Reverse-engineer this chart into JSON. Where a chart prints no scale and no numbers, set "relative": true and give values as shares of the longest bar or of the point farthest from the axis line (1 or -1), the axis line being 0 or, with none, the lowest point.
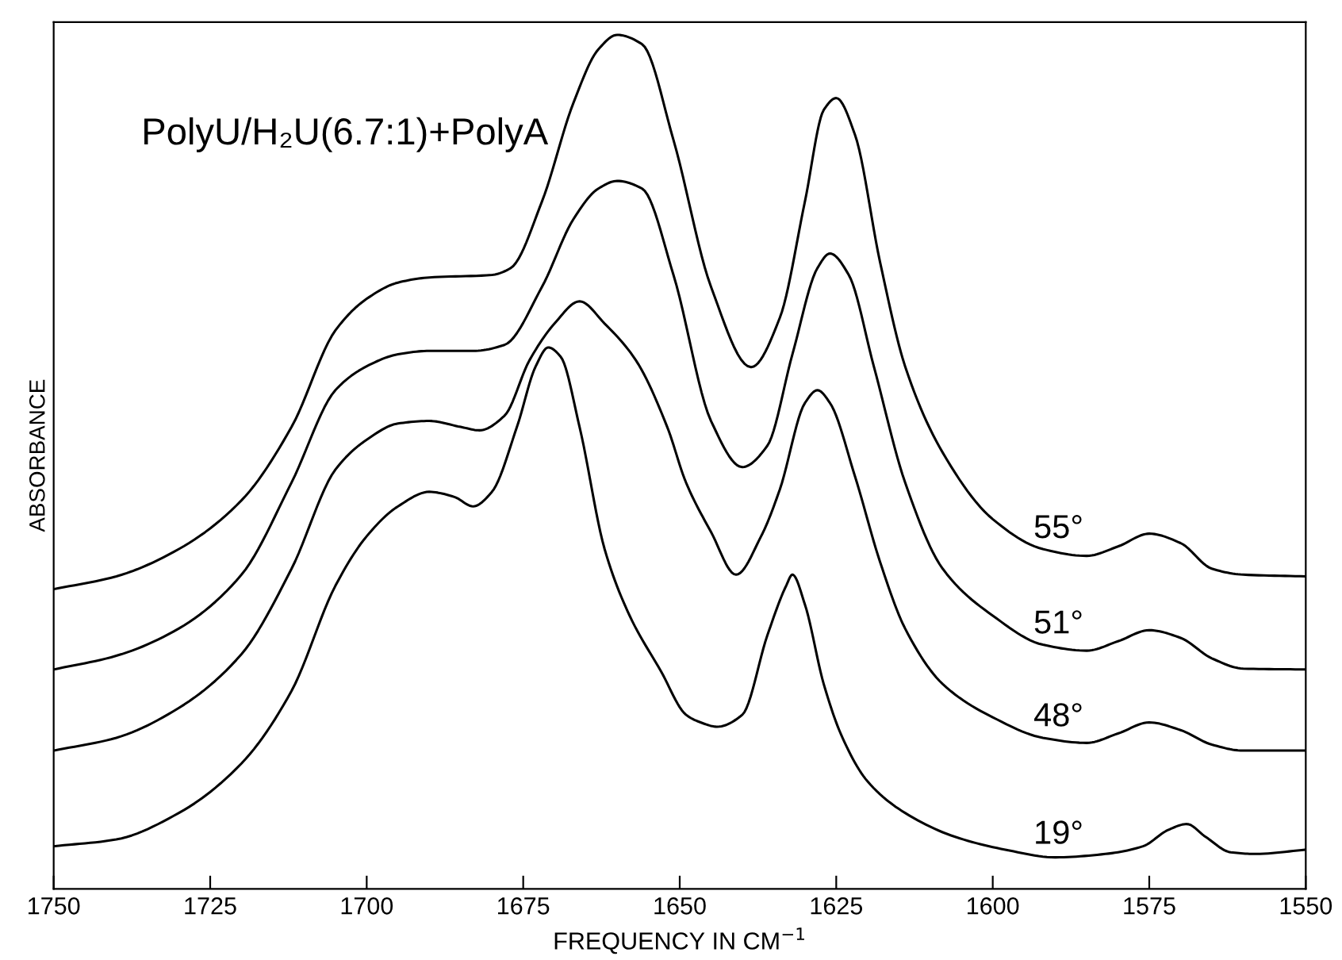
{
  "chart_data": {
    "type": "line",
    "title": "PolyU/H₂U(6.7:1)+PolyA",
    "xlabel": "FREQUENCY IN CM$^{−1}$",
    "ylabel": "ABSORBANCE",
    "relative": true,
    "xlim": [
      1750,
      1550
    ],
    "xticks": [
      1750,
      1725,
      1700,
      1675,
      1650,
      1625,
      1600,
      1575,
      1550
    ],
    "grid": false,
    "legend": false,
    "marker": "none",
    "line_style": "solid",
    "series": [
      {
        "name": "55°",
        "color": "#000000",
        "x": [
          1750,
          1740,
          1730,
          1720,
          1712,
          1705,
          1700,
          1695,
          1690,
          1680,
          1677,
          1672,
          1667,
          1663,
          1660,
          1656,
          1651,
          1645,
          1638.6,
          1634,
          1630,
          1627,
          1625,
          1622,
          1618,
          1614,
          1608,
          1600,
          1592,
          1585,
          1580,
          1575,
          1570,
          1565,
          1560,
          1550
        ],
        "values": [
          0.351,
          0.366,
          0.398,
          0.455,
          0.541,
          0.654,
          0.691,
          0.71,
          0.716,
          0.719,
          0.727,
          0.805,
          0.92,
          0.983,
          1.0,
          0.989,
          0.877,
          0.705,
          0.611,
          0.669,
          0.805,
          0.912,
          0.926,
          0.883,
          0.734,
          0.612,
          0.511,
          0.433,
          0.398,
          0.39,
          0.401,
          0.416,
          0.405,
          0.375,
          0.368,
          0.366
        ]
      },
      {
        "name": "51°",
        "color": "#000000",
        "x": [
          1750,
          1740,
          1730,
          1720,
          1712,
          1705,
          1700,
          1695,
          1690,
          1683,
          1678,
          1672,
          1667,
          1663,
          1660,
          1656,
          1651,
          1645,
          1640,
          1636,
          1632,
          1628,
          1626,
          1623,
          1619,
          1614,
          1608,
          1600,
          1592,
          1585,
          1580,
          1575,
          1570,
          1565,
          1560,
          1550
        ],
        "values": [
          0.257,
          0.273,
          0.305,
          0.368,
          0.476,
          0.584,
          0.612,
          0.626,
          0.63,
          0.63,
          0.637,
          0.705,
          0.784,
          0.82,
          0.829,
          0.82,
          0.719,
          0.548,
          0.494,
          0.519,
          0.626,
          0.727,
          0.744,
          0.719,
          0.612,
          0.476,
          0.375,
          0.32,
          0.286,
          0.279,
          0.29,
          0.303,
          0.294,
          0.27,
          0.258,
          0.257
        ]
      },
      {
        "name": "48°",
        "color": "#000000",
        "x": [
          1750,
          1740,
          1730,
          1720,
          1712,
          1705,
          1700,
          1695,
          1690,
          1685,
          1682,
          1678,
          1674,
          1670,
          1666,
          1662,
          1657,
          1652,
          1649,
          1645,
          1641,
          1637,
          1634,
          1630,
          1628,
          1626,
          1622,
          1618,
          1614,
          1608,
          1600,
          1592,
          1585,
          1580,
          1575,
          1570,
          1565,
          1560,
          1550
        ],
        "values": [
          0.162,
          0.177,
          0.212,
          0.275,
          0.375,
          0.491,
          0.526,
          0.545,
          0.548,
          0.541,
          0.537,
          0.554,
          0.619,
          0.662,
          0.688,
          0.662,
          0.619,
          0.541,
          0.476,
          0.418,
          0.368,
          0.413,
          0.468,
          0.569,
          0.584,
          0.569,
          0.483,
          0.383,
          0.305,
          0.24,
          0.201,
          0.177,
          0.171,
          0.182,
          0.195,
          0.186,
          0.169,
          0.162,
          0.162
        ]
      },
      {
        "name": "19°",
        "color": "#000000",
        "x": [
          1750,
          1740,
          1730,
          1720,
          1712,
          1705,
          1700,
          1695,
          1690,
          1686,
          1683,
          1680,
          1676,
          1673,
          1671,
          1669,
          1666,
          1662,
          1658,
          1653,
          1649,
          1647,
          1644,
          1640,
          1636,
          1633,
          1632,
          1630,
          1627,
          1624,
          1620,
          1614,
          1606,
          1598,
          1590,
          1582,
          1576,
          1572,
          1569,
          1566,
          1562,
          1558,
          1550
        ],
        "values": [
          0.05,
          0.058,
          0.089,
          0.147,
          0.232,
          0.355,
          0.413,
          0.448,
          0.465,
          0.459,
          0.448,
          0.465,
          0.541,
          0.612,
          0.634,
          0.623,
          0.541,
          0.398,
          0.32,
          0.255,
          0.204,
          0.196,
          0.19,
          0.204,
          0.297,
          0.355,
          0.368,
          0.333,
          0.24,
          0.177,
          0.126,
          0.089,
          0.061,
          0.046,
          0.037,
          0.041,
          0.05,
          0.069,
          0.076,
          0.061,
          0.043,
          0.041,
          0.046
        ]
      }
    ]
  }
}
